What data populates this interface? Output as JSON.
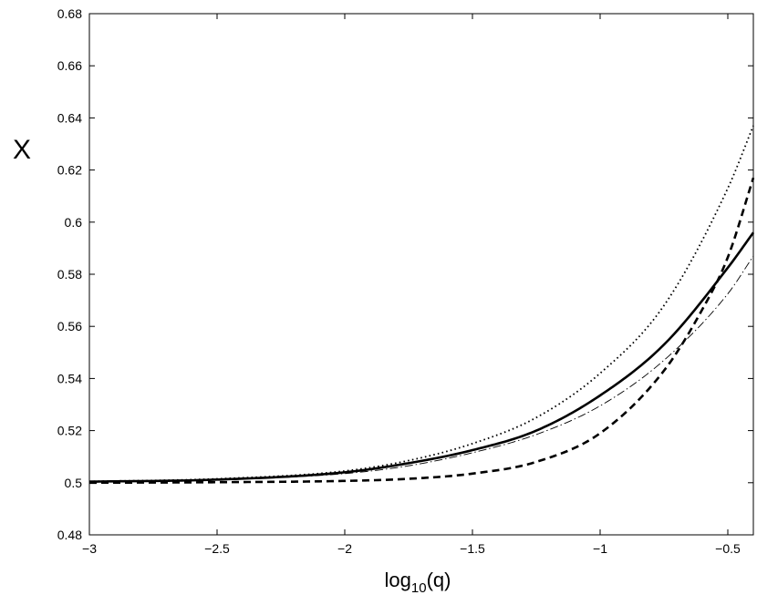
{
  "chart_data": {
    "type": "line",
    "title": "",
    "xlabel": {
      "base": "log",
      "sub": "10",
      "arg": "(q)"
    },
    "ylabel": "X",
    "xlim": [
      -3,
      -0.4
    ],
    "ylim": [
      0.48,
      0.68
    ],
    "x_ticks": [
      -3,
      -2.5,
      -2,
      -1.5,
      -1,
      -0.5
    ],
    "x_tick_labels": [
      "−3",
      "−2.5",
      "−2",
      "−1.5",
      "−1",
      "−0.5"
    ],
    "y_ticks": [
      0.48,
      0.5,
      0.52,
      0.54,
      0.56,
      0.58,
      0.6,
      0.62,
      0.64,
      0.66,
      0.68
    ],
    "y_tick_labels": [
      "0.48",
      "0.5",
      "0.52",
      "0.54",
      "0.56",
      "0.58",
      "0.6",
      "0.62",
      "0.64",
      "0.66",
      "0.68"
    ],
    "grid": false,
    "legend": "none",
    "series": [
      {
        "style": "dotted",
        "color": "#000000",
        "x": [
          -3.0,
          -2.5,
          -2.0,
          -1.75,
          -1.5,
          -1.25,
          -1.0,
          -0.75,
          -0.5,
          -0.4
        ],
        "y": [
          0.5005,
          0.5015,
          0.5045,
          0.5085,
          0.515,
          0.525,
          0.542,
          0.568,
          0.613,
          0.637
        ]
      },
      {
        "style": "solid",
        "color": "#000000",
        "x": [
          -3.0,
          -2.5,
          -2.0,
          -1.75,
          -1.5,
          -1.25,
          -1.0,
          -0.75,
          -0.5,
          -0.4
        ],
        "y": [
          0.5004,
          0.5012,
          0.504,
          0.5075,
          0.5125,
          0.52,
          0.5335,
          0.553,
          0.5825,
          0.596
        ]
      },
      {
        "style": "dash-dot",
        "color": "#000000",
        "x": [
          -3.0,
          -2.5,
          -2.0,
          -1.75,
          -1.5,
          -1.25,
          -1.0,
          -0.75,
          -0.5,
          -0.4
        ],
        "y": [
          0.5004,
          0.5012,
          0.5035,
          0.5065,
          0.5115,
          0.5185,
          0.5295,
          0.547,
          0.5725,
          0.587
        ]
      },
      {
        "style": "dashed",
        "color": "#000000",
        "x": [
          -3.0,
          -2.5,
          -2.0,
          -1.75,
          -1.5,
          -1.25,
          -1.0,
          -0.75,
          -0.6,
          -0.5,
          -0.4
        ],
        "y": [
          0.5,
          0.5002,
          0.5007,
          0.5015,
          0.5035,
          0.508,
          0.519,
          0.543,
          0.5665,
          0.5865,
          0.617
        ]
      }
    ]
  }
}
